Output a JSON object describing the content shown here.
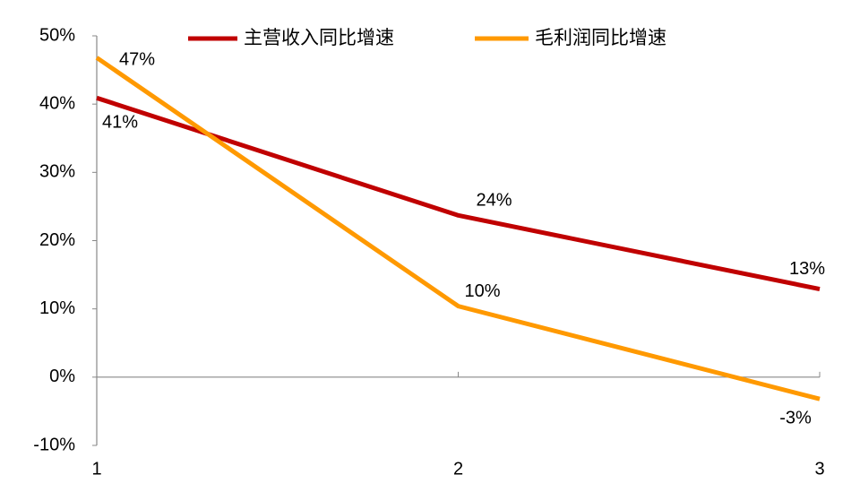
{
  "chart_data": {
    "type": "line",
    "x": [
      1,
      2,
      3
    ],
    "xlim": [
      1,
      3
    ],
    "xticks": [
      1,
      2,
      3
    ],
    "ylim": [
      -10,
      50
    ],
    "yticks": [
      {
        "value": -10,
        "label": "-10%"
      },
      {
        "value": 0,
        "label": "0%"
      },
      {
        "value": 10,
        "label": "10%"
      },
      {
        "value": 20,
        "label": "20%"
      },
      {
        "value": 30,
        "label": "30%"
      },
      {
        "value": 40,
        "label": "40%"
      },
      {
        "value": 50,
        "label": "50%"
      }
    ],
    "grid": false,
    "legend": "top",
    "series": [
      {
        "name": "主营收入同比增速",
        "color": "#c00000",
        "values": [
          40.9,
          23.7,
          12.9
        ],
        "value_labels": [
          "41%",
          "24%",
          "13%"
        ]
      },
      {
        "name": "毛利润同比增速",
        "color": "#ff9900",
        "values": [
          46.8,
          10.4,
          -3.2
        ],
        "value_labels": [
          "47%",
          "10%",
          "-3%"
        ]
      }
    ]
  }
}
